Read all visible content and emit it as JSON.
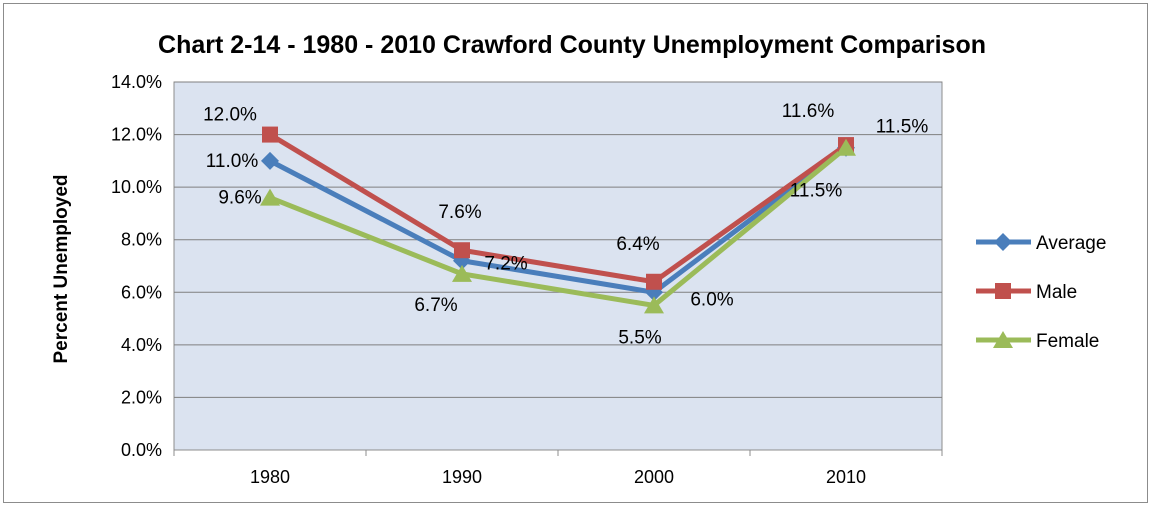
{
  "chart_data": {
    "type": "line",
    "title": "Chart 2-14 - 1980 - 2010 Crawford County Unemployment Comparison",
    "xlabel": "",
    "ylabel": "Percent Unemployed",
    "categories": [
      "1980",
      "1990",
      "2000",
      "2010"
    ],
    "ylim": [
      0,
      14
    ],
    "yticks": [
      "0.0%",
      "2.0%",
      "4.0%",
      "6.0%",
      "8.0%",
      "10.0%",
      "12.0%",
      "14.0%"
    ],
    "ytick_values": [
      0,
      2,
      4,
      6,
      8,
      10,
      12,
      14
    ],
    "grid": true,
    "legend_position": "right",
    "plot_background": "#dbe3f0",
    "series": [
      {
        "name": "Average",
        "color": "#4a7ebb",
        "marker": "diamond",
        "values": [
          11.0,
          7.2,
          6.0,
          11.5
        ],
        "labels": [
          "11.0%",
          "7.2%",
          "6.0%",
          "11.5%"
        ]
      },
      {
        "name": "Male",
        "color": "#c0504d",
        "marker": "square",
        "values": [
          12.0,
          7.6,
          6.4,
          11.6
        ],
        "labels": [
          "12.0%",
          "7.6%",
          "6.4%",
          "11.6%"
        ]
      },
      {
        "name": "Female",
        "color": "#9bbb59",
        "marker": "triangle",
        "values": [
          9.6,
          6.7,
          5.5,
          11.5
        ],
        "labels": [
          "9.6%",
          "6.7%",
          "5.5%",
          "11.5%"
        ]
      }
    ]
  }
}
